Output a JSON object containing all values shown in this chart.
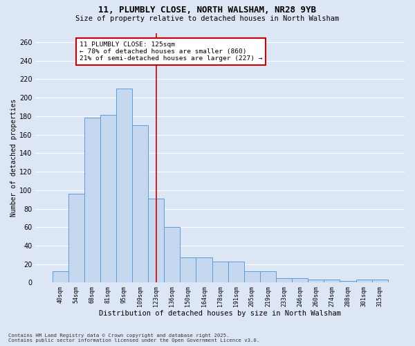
{
  "title1": "11, PLUMBLY CLOSE, NORTH WALSHAM, NR28 9YB",
  "title2": "Size of property relative to detached houses in North Walsham",
  "xlabel": "Distribution of detached houses by size in North Walsham",
  "ylabel": "Number of detached properties",
  "categories": [
    "40sqm",
    "54sqm",
    "68sqm",
    "81sqm",
    "95sqm",
    "109sqm",
    "123sqm",
    "136sqm",
    "150sqm",
    "164sqm",
    "178sqm",
    "191sqm",
    "205sqm",
    "219sqm",
    "233sqm",
    "246sqm",
    "260sqm",
    "274sqm",
    "288sqm",
    "301sqm",
    "315sqm"
  ],
  "values": [
    12,
    96,
    178,
    181,
    210,
    170,
    91,
    60,
    27,
    27,
    23,
    23,
    12,
    12,
    5,
    5,
    3,
    3,
    2,
    3,
    3
  ],
  "bar_color": "#c5d8f0",
  "bar_edge_color": "#5b9bd5",
  "background_color": "#dce6f5",
  "grid_color": "#ffffff",
  "vline_color": "#cc0000",
  "vline_x": 6.5,
  "annotation_line1": "11 PLUMBLY CLOSE: 125sqm",
  "annotation_line2": "← 78% of detached houses are smaller (860)",
  "annotation_line3": "21% of semi-detached houses are larger (227) →",
  "annotation_box_facecolor": "#ffffff",
  "annotation_box_edgecolor": "#cc0000",
  "ylim": [
    0,
    270
  ],
  "yticks": [
    0,
    20,
    40,
    60,
    80,
    100,
    120,
    140,
    160,
    180,
    200,
    220,
    240,
    260
  ],
  "footnote1": "Contains HM Land Registry data © Crown copyright and database right 2025.",
  "footnote2": "Contains public sector information licensed under the Open Government Licence v3.0."
}
